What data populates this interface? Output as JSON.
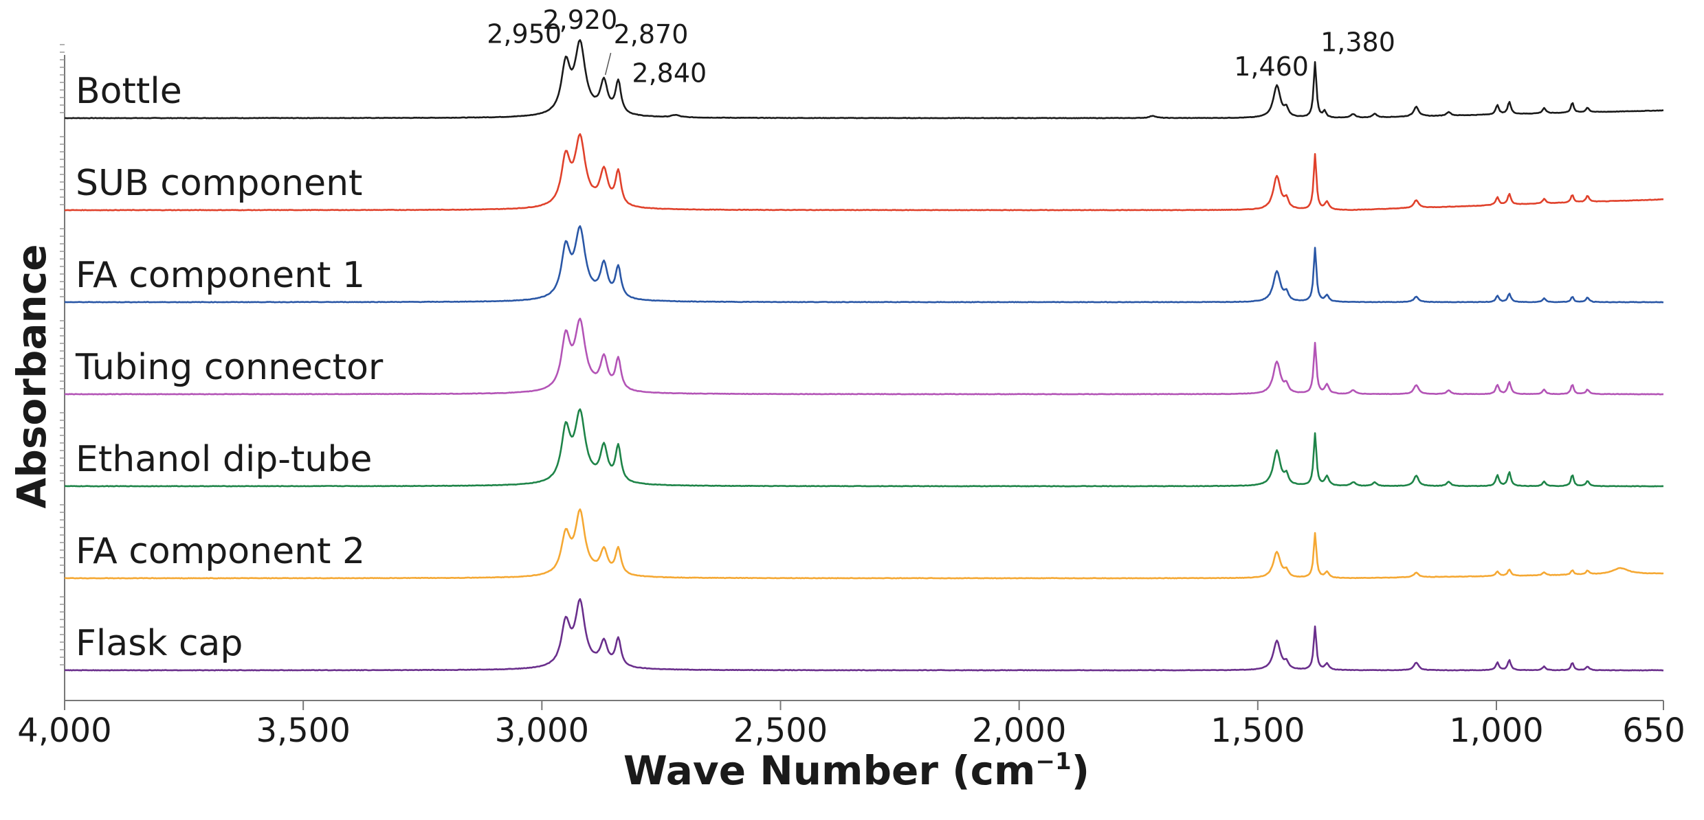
{
  "chart_data": {
    "type": "line",
    "title": "",
    "xlabel": "Wave Number (cm⁻¹)",
    "xlabel_main": "Wave Number (cm",
    "xlabel_sup": "−1",
    "xlabel_close": ")",
    "ylabel": "Absorbance",
    "xlim": [
      4000,
      650
    ],
    "x_reversed": true,
    "x_ticks": [
      4000,
      3500,
      3000,
      2500,
      2000,
      1500,
      1000,
      650
    ],
    "x_tick_labels": [
      "4,000",
      "3,500",
      "3,000",
      "2,500",
      "2,000",
      "1,500",
      "1,000",
      "650"
    ],
    "grid": false,
    "series": [
      {
        "name": "Bottle",
        "color": "#1a1a1a",
        "peaks": [
          {
            "x": 2950,
            "h": 0.62,
            "w": 11
          },
          {
            "x": 2920,
            "h": 0.88,
            "w": 13
          },
          {
            "x": 2870,
            "h": 0.4,
            "w": 9
          },
          {
            "x": 2840,
            "h": 0.42,
            "w": 7
          },
          {
            "x": 2720,
            "h": 0.03,
            "w": 10
          },
          {
            "x": 1720,
            "h": 0.03,
            "w": 8
          },
          {
            "x": 1460,
            "h": 0.42,
            "w": 9
          },
          {
            "x": 1440,
            "h": 0.1,
            "w": 5
          },
          {
            "x": 1380,
            "h": 0.72,
            "w": 3.5
          },
          {
            "x": 1360,
            "h": 0.08,
            "w": 4
          },
          {
            "x": 1300,
            "h": 0.05,
            "w": 6
          },
          {
            "x": 1255,
            "h": 0.05,
            "w": 5
          },
          {
            "x": 1168,
            "h": 0.13,
            "w": 6
          },
          {
            "x": 1100,
            "h": 0.05,
            "w": 5
          },
          {
            "x": 998,
            "h": 0.12,
            "w": 4
          },
          {
            "x": 973,
            "h": 0.16,
            "w": 4
          },
          {
            "x": 900,
            "h": 0.07,
            "w": 4
          },
          {
            "x": 841,
            "h": 0.13,
            "w": 3.5
          },
          {
            "x": 809,
            "h": 0.06,
            "w": 4
          }
        ],
        "baseline_rise": 0.1
      },
      {
        "name": "SUB component",
        "color": "#e0412b",
        "peaks": [
          {
            "x": 2950,
            "h": 0.6,
            "w": 11
          },
          {
            "x": 2920,
            "h": 0.85,
            "w": 13
          },
          {
            "x": 2870,
            "h": 0.44,
            "w": 10
          },
          {
            "x": 2840,
            "h": 0.44,
            "w": 7
          },
          {
            "x": 1460,
            "h": 0.44,
            "w": 9
          },
          {
            "x": 1440,
            "h": 0.12,
            "w": 5
          },
          {
            "x": 1380,
            "h": 0.72,
            "w": 3.5
          },
          {
            "x": 1355,
            "h": 0.1,
            "w": 5
          },
          {
            "x": 1168,
            "h": 0.1,
            "w": 6
          },
          {
            "x": 998,
            "h": 0.1,
            "w": 4
          },
          {
            "x": 973,
            "h": 0.14,
            "w": 4
          },
          {
            "x": 900,
            "h": 0.06,
            "w": 4
          },
          {
            "x": 841,
            "h": 0.1,
            "w": 3.5
          },
          {
            "x": 809,
            "h": 0.08,
            "w": 4
          }
        ],
        "baseline_rise": 0.14
      },
      {
        "name": "FA component 1",
        "color": "#2a57a6",
        "peaks": [
          {
            "x": 2950,
            "h": 0.62,
            "w": 11
          },
          {
            "x": 2920,
            "h": 0.85,
            "w": 13
          },
          {
            "x": 2870,
            "h": 0.42,
            "w": 9
          },
          {
            "x": 2840,
            "h": 0.4,
            "w": 7
          },
          {
            "x": 1460,
            "h": 0.4,
            "w": 9
          },
          {
            "x": 1440,
            "h": 0.1,
            "w": 5
          },
          {
            "x": 1380,
            "h": 0.7,
            "w": 3.5
          },
          {
            "x": 1355,
            "h": 0.08,
            "w": 5
          },
          {
            "x": 1168,
            "h": 0.07,
            "w": 6
          },
          {
            "x": 998,
            "h": 0.08,
            "w": 4
          },
          {
            "x": 973,
            "h": 0.11,
            "w": 4
          },
          {
            "x": 900,
            "h": 0.05,
            "w": 4
          },
          {
            "x": 841,
            "h": 0.07,
            "w": 3.5
          },
          {
            "x": 809,
            "h": 0.06,
            "w": 4
          }
        ],
        "baseline_rise": 0.0
      },
      {
        "name": "Tubing connector",
        "color": "#b354b6",
        "peaks": [
          {
            "x": 2950,
            "h": 0.66,
            "w": 11
          },
          {
            "x": 2920,
            "h": 0.84,
            "w": 13
          },
          {
            "x": 2870,
            "h": 0.4,
            "w": 9
          },
          {
            "x": 2840,
            "h": 0.4,
            "w": 7
          },
          {
            "x": 1460,
            "h": 0.42,
            "w": 9
          },
          {
            "x": 1440,
            "h": 0.1,
            "w": 5
          },
          {
            "x": 1380,
            "h": 0.66,
            "w": 3.5
          },
          {
            "x": 1355,
            "h": 0.12,
            "w": 5
          },
          {
            "x": 1300,
            "h": 0.05,
            "w": 6
          },
          {
            "x": 1168,
            "h": 0.12,
            "w": 6
          },
          {
            "x": 1100,
            "h": 0.05,
            "w": 5
          },
          {
            "x": 998,
            "h": 0.12,
            "w": 4
          },
          {
            "x": 973,
            "h": 0.16,
            "w": 4
          },
          {
            "x": 900,
            "h": 0.06,
            "w": 4
          },
          {
            "x": 841,
            "h": 0.13,
            "w": 3.5
          },
          {
            "x": 809,
            "h": 0.06,
            "w": 4
          }
        ],
        "baseline_rise": 0.0
      },
      {
        "name": "Ethanol dip-tube",
        "color": "#1e8448",
        "peaks": [
          {
            "x": 2950,
            "h": 0.66,
            "w": 11
          },
          {
            "x": 2920,
            "h": 0.86,
            "w": 13
          },
          {
            "x": 2870,
            "h": 0.44,
            "w": 9
          },
          {
            "x": 2840,
            "h": 0.46,
            "w": 7
          },
          {
            "x": 1460,
            "h": 0.46,
            "w": 9
          },
          {
            "x": 1440,
            "h": 0.12,
            "w": 5
          },
          {
            "x": 1380,
            "h": 0.68,
            "w": 3.5
          },
          {
            "x": 1355,
            "h": 0.12,
            "w": 5
          },
          {
            "x": 1300,
            "h": 0.05,
            "w": 6
          },
          {
            "x": 1255,
            "h": 0.05,
            "w": 5
          },
          {
            "x": 1168,
            "h": 0.14,
            "w": 6
          },
          {
            "x": 1100,
            "h": 0.06,
            "w": 5
          },
          {
            "x": 998,
            "h": 0.14,
            "w": 4
          },
          {
            "x": 973,
            "h": 0.18,
            "w": 4
          },
          {
            "x": 900,
            "h": 0.06,
            "w": 4
          },
          {
            "x": 841,
            "h": 0.15,
            "w": 3.5
          },
          {
            "x": 809,
            "h": 0.07,
            "w": 4
          }
        ],
        "baseline_rise": 0.0
      },
      {
        "name": "FA component 2",
        "color": "#f5a833",
        "peaks": [
          {
            "x": 2950,
            "h": 0.5,
            "w": 11
          },
          {
            "x": 2920,
            "h": 0.78,
            "w": 12
          },
          {
            "x": 2870,
            "h": 0.3,
            "w": 9
          },
          {
            "x": 2840,
            "h": 0.34,
            "w": 7
          },
          {
            "x": 1460,
            "h": 0.34,
            "w": 9
          },
          {
            "x": 1440,
            "h": 0.08,
            "w": 5
          },
          {
            "x": 1380,
            "h": 0.58,
            "w": 3.5
          },
          {
            "x": 1355,
            "h": 0.08,
            "w": 5
          },
          {
            "x": 1168,
            "h": 0.06,
            "w": 6
          },
          {
            "x": 998,
            "h": 0.06,
            "w": 4
          },
          {
            "x": 973,
            "h": 0.08,
            "w": 4
          },
          {
            "x": 900,
            "h": 0.04,
            "w": 4
          },
          {
            "x": 841,
            "h": 0.06,
            "w": 3.5
          },
          {
            "x": 809,
            "h": 0.05,
            "w": 4
          },
          {
            "x": 740,
            "h": 0.08,
            "w": 20
          }
        ],
        "baseline_rise": 0.06
      },
      {
        "name": "Flask cap",
        "color": "#6a2f8c",
        "peaks": [
          {
            "x": 2950,
            "h": 0.55,
            "w": 11
          },
          {
            "x": 2920,
            "h": 0.8,
            "w": 12
          },
          {
            "x": 2870,
            "h": 0.3,
            "w": 9
          },
          {
            "x": 2840,
            "h": 0.36,
            "w": 7
          },
          {
            "x": 1460,
            "h": 0.38,
            "w": 9
          },
          {
            "x": 1440,
            "h": 0.08,
            "w": 5
          },
          {
            "x": 1380,
            "h": 0.56,
            "w": 3.5
          },
          {
            "x": 1355,
            "h": 0.08,
            "w": 5
          },
          {
            "x": 1168,
            "h": 0.1,
            "w": 6
          },
          {
            "x": 998,
            "h": 0.1,
            "w": 4
          },
          {
            "x": 973,
            "h": 0.13,
            "w": 4
          },
          {
            "x": 900,
            "h": 0.05,
            "w": 4
          },
          {
            "x": 841,
            "h": 0.1,
            "w": 3.5
          },
          {
            "x": 809,
            "h": 0.05,
            "w": 4
          }
        ],
        "baseline_rise": 0.0
      }
    ],
    "annotations": [
      {
        "text": "2,950",
        "x": 2950,
        "series": "Bottle"
      },
      {
        "text": "2,920",
        "x": 2920,
        "series": "Bottle"
      },
      {
        "text": "2,870",
        "x": 2870,
        "series": "Bottle"
      },
      {
        "text": "2,840",
        "x": 2840,
        "series": "Bottle"
      },
      {
        "text": "1,460",
        "x": 1460,
        "series": "Bottle"
      },
      {
        "text": "1,380",
        "x": 1380,
        "series": "Bottle"
      }
    ]
  }
}
